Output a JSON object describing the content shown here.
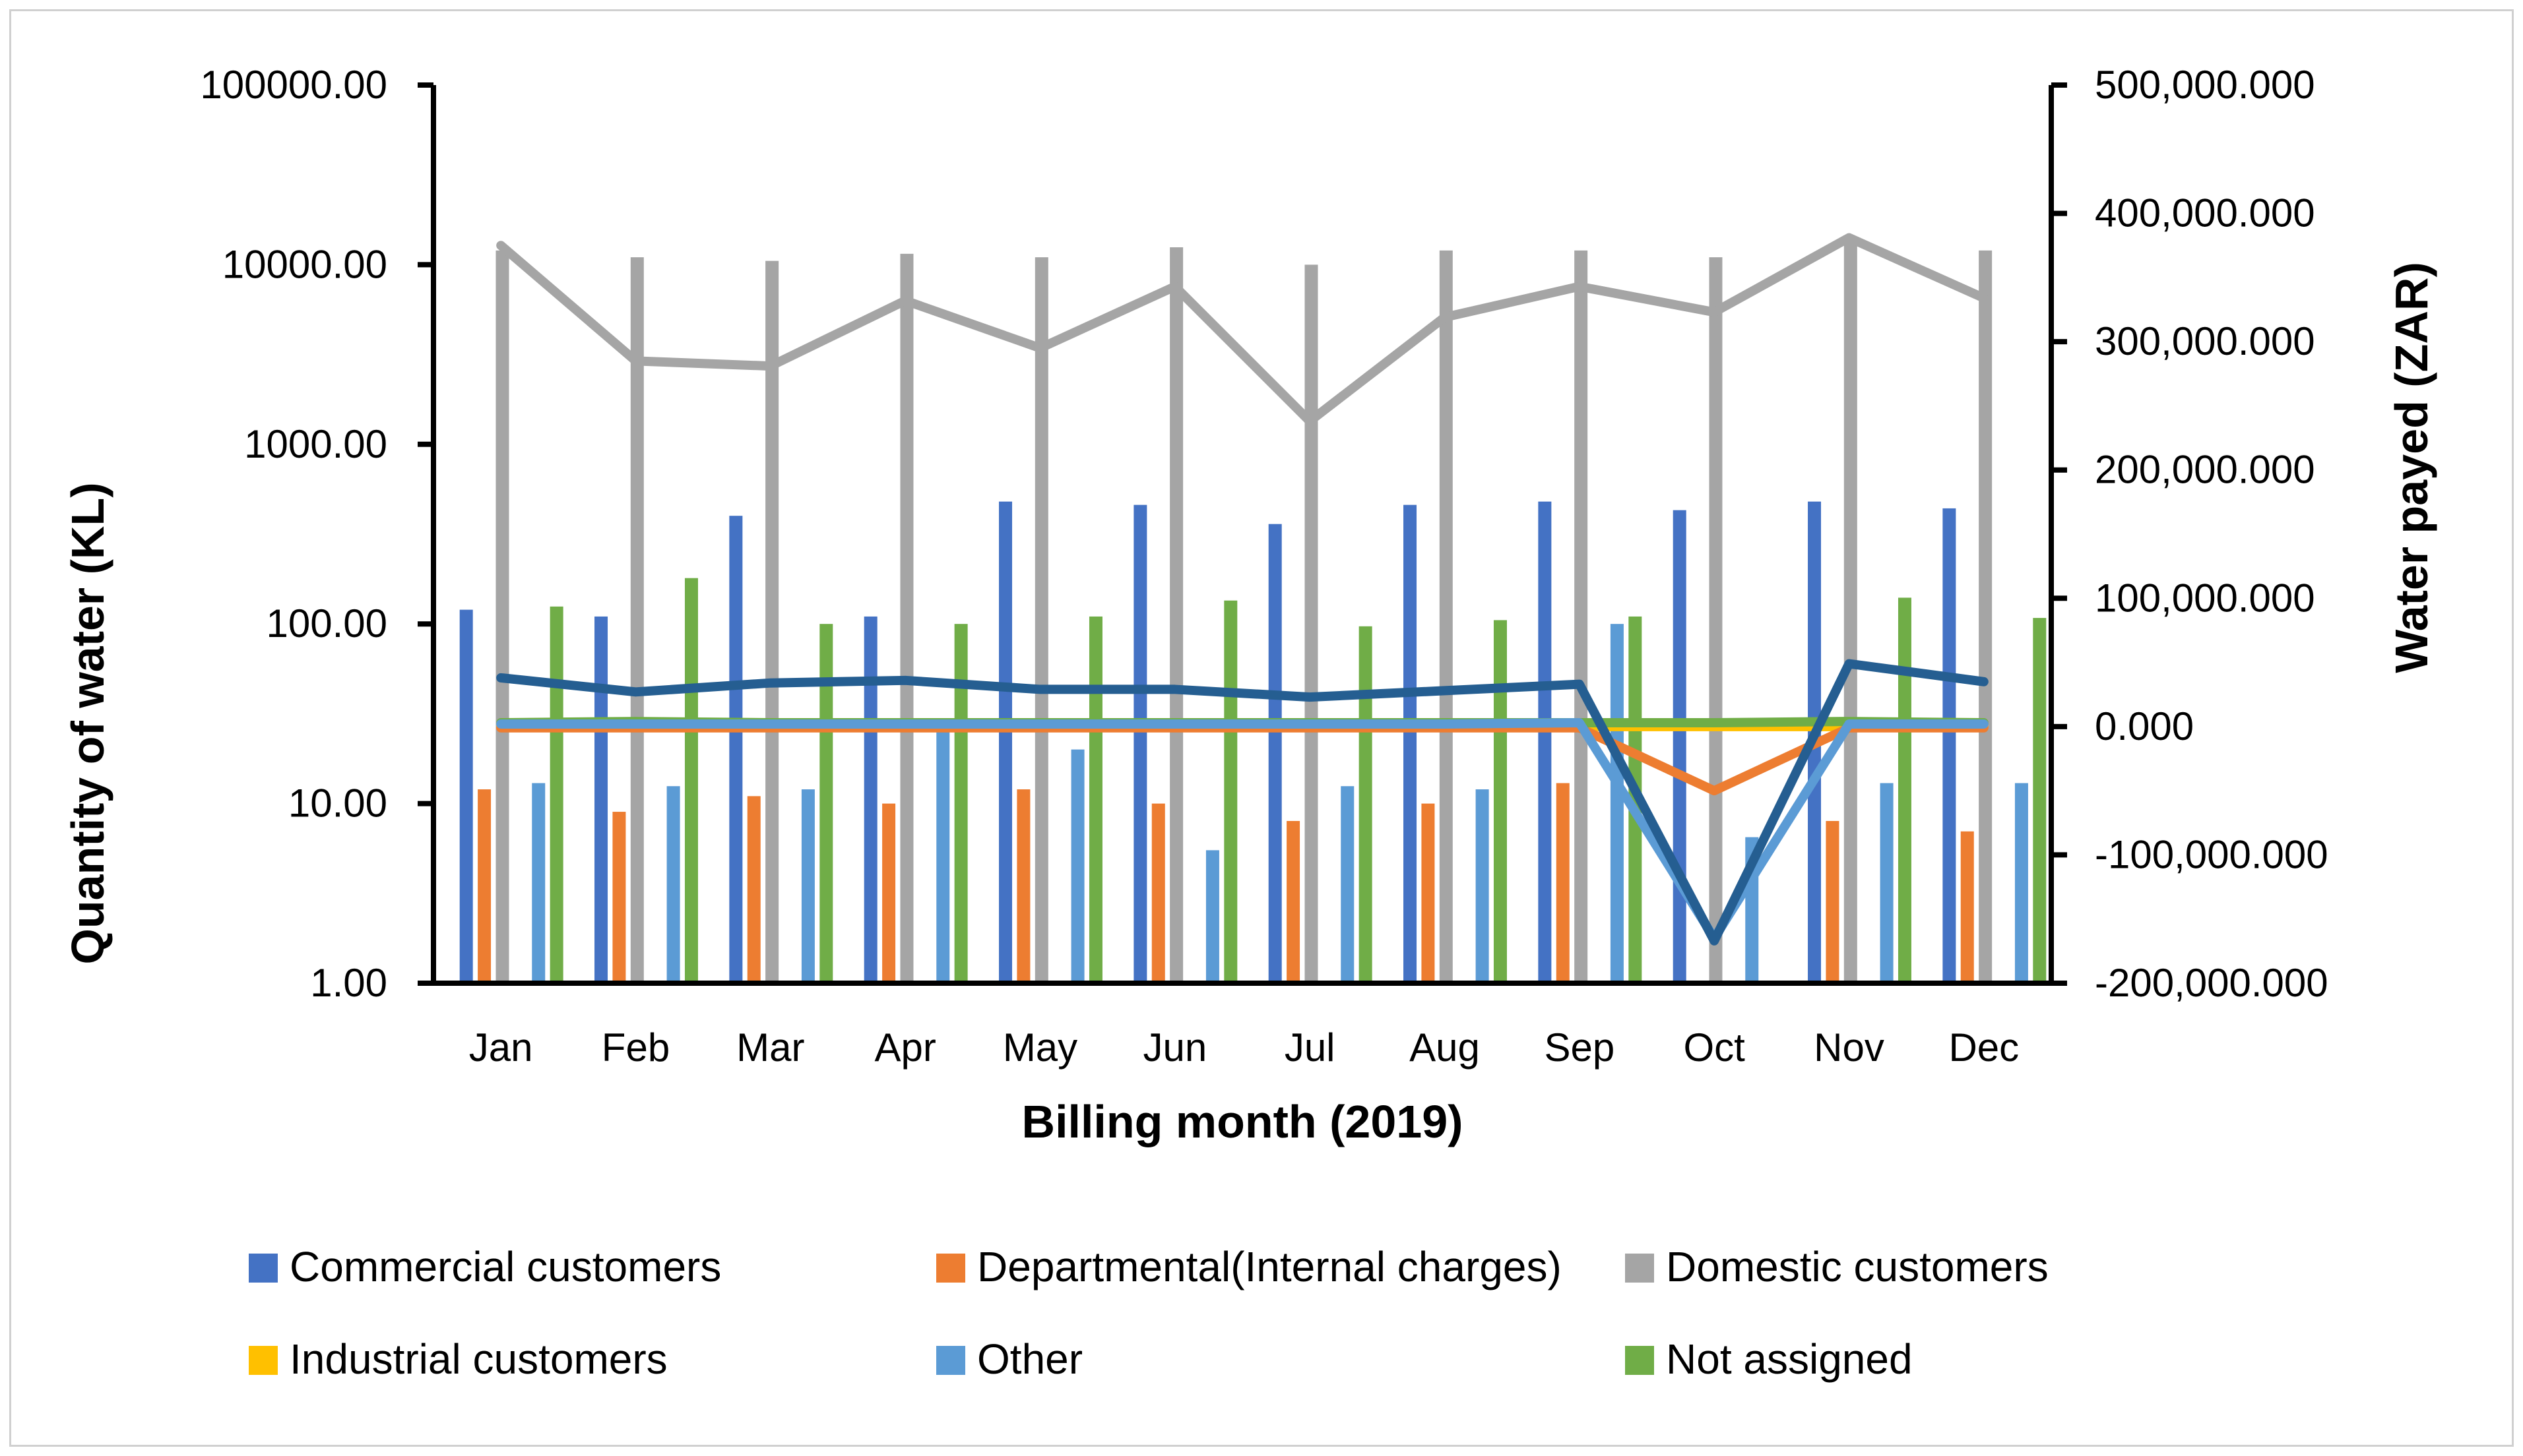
{
  "chart_data": {
    "type": "bar",
    "categories": [
      "Jan",
      "Feb",
      "Mar",
      "Apr",
      "May",
      "Jun",
      "Jul",
      "Aug",
      "Sep",
      "Oct",
      "Nov",
      "Dec"
    ],
    "xlabel": "Billing month (2019)",
    "ylabel": "Quantity of water (KL)",
    "y2label": "Water payed (ZAR)",
    "yscale": "log",
    "ylim": [
      1,
      100000
    ],
    "y_ticks": [
      1,
      10,
      100,
      1000,
      10000,
      100000
    ],
    "y_tick_labels": [
      "1.00",
      "10.00",
      "100.00",
      "1000.00",
      "10000.00",
      "100000.00"
    ],
    "y2lim": [
      -200000000,
      500000000
    ],
    "y2_ticks": [
      -200000000,
      -100000000,
      0,
      100000000,
      200000000,
      300000000,
      400000000,
      500000000
    ],
    "y2_tick_labels": [
      "-200,000.000",
      "-100,000.000",
      "0.000",
      "100,000.000",
      "200,000.000",
      "300,000.000",
      "400,000.000",
      "500,000.000"
    ],
    "legend_position": "bottom",
    "series": [
      {
        "name": "Commercial customers",
        "color": "#4472c4",
        "line_color": "#255e91",
        "values": [
          120,
          110,
          400,
          110,
          480,
          460,
          360,
          460,
          480,
          430,
          480,
          440
        ],
        "payments": [
          38000000,
          27000000,
          34000000,
          36000000,
          29000000,
          29000000,
          23000000,
          28000000,
          33000000,
          -167000000,
          49000000,
          35000000
        ]
      },
      {
        "name": "Departmental(Internal charges)",
        "color": "#ed7d31",
        "line_color": "#ed7d31",
        "values": [
          12,
          9,
          11,
          10,
          12,
          10,
          8,
          10,
          13,
          null,
          8,
          7
        ],
        "payments": [
          -1000000,
          -1000000,
          -1000000,
          -1000000,
          -1000000,
          -1000000,
          -1000000,
          -1000000,
          -1000000,
          -50000000,
          -1000000,
          -1000000
        ]
      },
      {
        "name": "Domestic customers",
        "color": "#a5a5a5",
        "line_color": "#a5a5a5",
        "values": [
          12000,
          11000,
          10500,
          11500,
          11000,
          12500,
          10000,
          12000,
          12000,
          11000,
          14000,
          12000
        ],
        "payments": [
          375000000,
          285000000,
          281000000,
          332000000,
          295000000,
          343000000,
          238000000,
          319000000,
          343000000,
          323000000,
          381000000,
          334000000
        ]
      },
      {
        "name": "Industrial customers",
        "color": "#ffc000",
        "line_color": "#ffc000",
        "values": [
          null,
          null,
          null,
          null,
          null,
          null,
          null,
          null,
          null,
          null,
          null,
          null
        ],
        "payments": [
          0,
          0,
          0,
          0,
          0,
          0,
          0,
          0,
          0,
          0,
          0,
          0
        ]
      },
      {
        "name": "Other",
        "color": "#5b9bd5",
        "line_color": "#5b9bd5",
        "values": [
          13,
          12.5,
          12,
          25,
          20,
          5.5,
          12.5,
          12,
          100,
          6.5,
          13,
          13
        ],
        "payments": [
          2000000,
          2000000,
          2000000,
          2000000,
          2000000,
          2000000,
          2000000,
          2000000,
          3000000,
          -165000000,
          2000000,
          2000000
        ]
      },
      {
        "name": "Not assigned",
        "color": "#70ad47",
        "line_color": "#70ad47",
        "values": [
          125,
          180,
          100,
          100,
          110,
          135,
          97,
          105,
          110,
          null,
          140,
          108
        ],
        "payments": [
          3000000,
          4000000,
          3000000,
          3000000,
          3000000,
          3000000,
          3000000,
          3000000,
          3000000,
          3000000,
          4000000,
          3000000
        ]
      }
    ]
  }
}
